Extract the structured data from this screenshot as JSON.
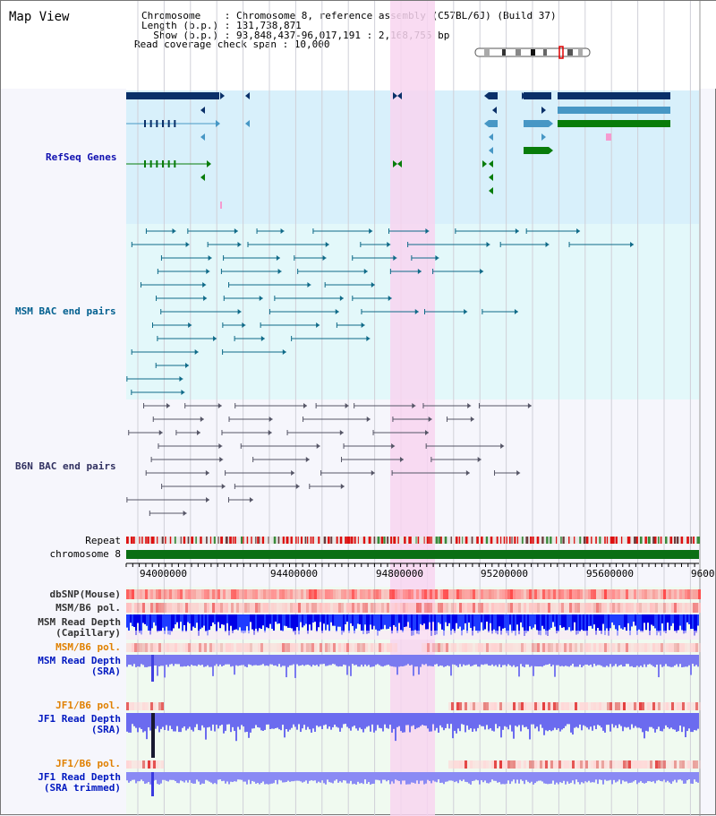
{
  "view_title": "Map View",
  "info": {
    "chromosome": "Chromosome    : Chromosome 8, reference assembly (C57BL/6J) (Build 37)",
    "length": "Length (b.p.) : 131,738,871",
    "show": "  Show (b.p.) : 93,848,437-96,017,191 : 2,168,755 bp",
    "read_coverage": "Read coverage check span : 10,000"
  },
  "tracks": {
    "refseq": "RefSeq Genes",
    "msm_bac": "MSM BAC end pairs",
    "b6n_bac": "B6N BAC end pairs",
    "repeat": "Repeat",
    "chromosome": "chromosome 8",
    "dbsnp": "dbSNP(Mouse)",
    "msm_b6_pol_1": "MSM/B6 pol.",
    "msm_read_depth_cap": "MSM Read Depth\n(Capillary)",
    "msm_b6_pol_2": "MSM/B6 pol.",
    "msm_read_depth_sra": "MSM Read Depth\n(SRA)",
    "jf1_b6_pol_1": "JF1/B6 pol.",
    "jf1_read_depth_sra": "JF1 Read Depth\n(SRA)",
    "jf1_b6_pol_2": "JF1/B6 pol.",
    "jf1_read_depth_trim": "JF1 Read Depth\n(SRA trimmed)"
  },
  "axis": {
    "ticks": [
      "94000000",
      "94400000",
      "94800000",
      "95200000",
      "95600000",
      "9600"
    ]
  },
  "colors": {
    "refseq_label": "#1010b0",
    "msm_label": "#005f8f",
    "b6n_label": "#303060",
    "orange_label": "#e08000",
    "blue_label": "#0018c0",
    "navy": "#0a3069",
    "steel": "#4797c5",
    "green": "#087c0a",
    "highlight": "#f8d5f0"
  }
}
